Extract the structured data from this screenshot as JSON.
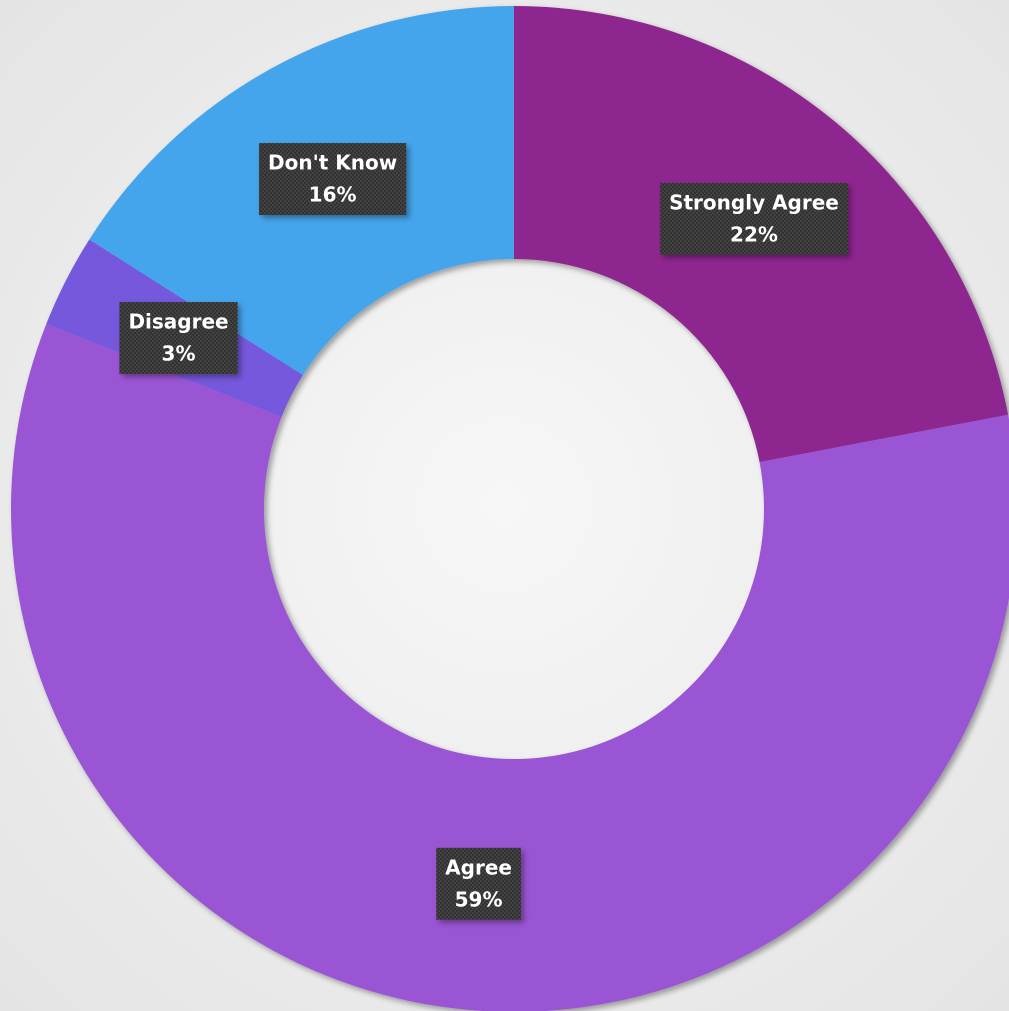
{
  "chart_data": {
    "type": "donut",
    "categories": [
      "Strongly Agree",
      "Agree",
      "Disagree",
      "Don't Know"
    ],
    "values": [
      22,
      59,
      3,
      16
    ],
    "value_labels": [
      "22%",
      "59%",
      "3%",
      "16%"
    ],
    "colors": [
      "#8e278f",
      "#9a55d4",
      "#7458dc",
      "#45a5ec"
    ]
  }
}
